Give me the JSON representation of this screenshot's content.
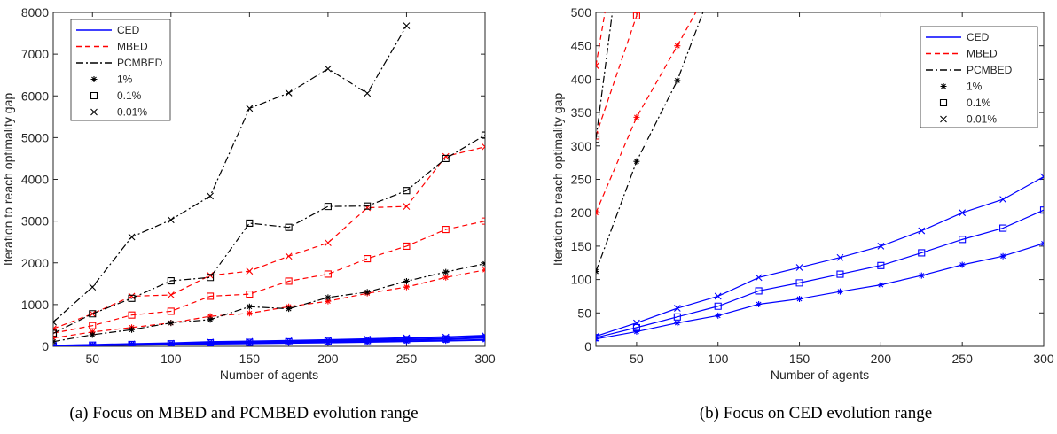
{
  "chart_data": [
    {
      "type": "line",
      "caption": "(a) Focus on MBED and PCMBED evolution range",
      "xlabel": "Number of agents",
      "ylabel": "Iteration to reach optimality gap",
      "x": [
        25,
        50,
        75,
        100,
        125,
        150,
        175,
        200,
        225,
        250,
        275,
        300
      ],
      "xlim": [
        25,
        300
      ],
      "xticks": [
        50,
        100,
        150,
        200,
        250,
        300
      ],
      "ylim": [
        0,
        8000
      ],
      "yticks": [
        0,
        1000,
        2000,
        3000,
        4000,
        5000,
        6000,
        7000,
        8000
      ],
      "markers": [
        {
          "name": "1%",
          "symbol": "star"
        },
        {
          "name": "0.1%",
          "symbol": "square"
        },
        {
          "name": "0.01%",
          "symbol": "cross"
        }
      ],
      "series": [
        {
          "name": "CED",
          "color": "#0000ff",
          "style": "solid",
          "values": [
            [
              11,
              22,
              35,
              46,
              63,
              71,
              82,
              92,
              106,
              122,
              135,
              154
            ],
            [
              13,
              28,
              44,
              60,
              83,
              95,
              108,
              121,
              140,
              160,
              177,
              204
            ],
            [
              15,
              35,
              57,
              75,
              103,
              118,
              133,
              150,
              173,
              200,
              220,
              254
            ]
          ]
        },
        {
          "name": "MBED",
          "color": "#ff0000",
          "style": "dashed",
          "values": [
            [
              200,
              343,
              450,
              560,
              720,
              790,
              950,
              1080,
              1270,
              1420,
              1650,
              1830
            ],
            [
              315,
              495,
              750,
              840,
              1200,
              1250,
              1560,
              1730,
              2100,
              2400,
              2800,
              3000
            ],
            [
              420,
              780,
              1200,
              1230,
              1700,
              1800,
              2160,
              2480,
              3320,
              3350,
              4550,
              4780
            ]
          ]
        },
        {
          "name": "PCMBED",
          "color": "#000000",
          "style": "dashdot",
          "values": [
            [
              112,
              277,
              398,
              560,
              640,
              950,
              900,
              1170,
              1300,
              1560,
              1780,
              1980
            ],
            [
              310,
              780,
              1150,
              1570,
              1650,
              2950,
              2850,
              3350,
              3360,
              3730,
              4500,
              5060
            ],
            [
              580,
              1420,
              2620,
              3030,
              3600,
              5700,
              6070,
              6650,
              6060,
              7680,
              null,
              null
            ]
          ]
        }
      ]
    },
    {
      "type": "line",
      "caption": "(b) Focus on CED evolution range",
      "xlabel": "Number of agents",
      "ylabel": "Iteration to reach optimality gap",
      "x": [
        25,
        50,
        75,
        100,
        125,
        150,
        175,
        200,
        225,
        250,
        275,
        300
      ],
      "xlim": [
        25,
        300
      ],
      "xticks": [
        50,
        100,
        150,
        200,
        250,
        300
      ],
      "ylim": [
        0,
        500
      ],
      "yticks": [
        0,
        50,
        100,
        150,
        200,
        250,
        300,
        350,
        400,
        450,
        500
      ],
      "markers": [
        {
          "name": "1%",
          "symbol": "star"
        },
        {
          "name": "0.1%",
          "symbol": "square"
        },
        {
          "name": "0.01%",
          "symbol": "cross"
        }
      ],
      "series": [
        {
          "name": "CED",
          "color": "#0000ff",
          "style": "solid",
          "values": [
            [
              11,
              22,
              35,
              46,
              63,
              71,
              82,
              92,
              106,
              122,
              135,
              154
            ],
            [
              13,
              28,
              44,
              60,
              83,
              95,
              108,
              121,
              140,
              160,
              177,
              204
            ],
            [
              15,
              35,
              57,
              75,
              103,
              118,
              133,
              150,
              173,
              200,
              220,
              254
            ]
          ]
        },
        {
          "name": "MBED",
          "color": "#ff0000",
          "style": "dashed",
          "values": [
            [
              200,
              343,
              450,
              560,
              720,
              790,
              950,
              1080,
              1270,
              1420,
              1650,
              1830
            ],
            [
              315,
              495,
              750,
              840,
              1200,
              1250,
              1560,
              1730,
              2100,
              2400,
              2800,
              3000
            ],
            [
              420,
              780,
              1200,
              1230,
              1700,
              1800,
              2160,
              2480,
              3320,
              3350,
              4550,
              4780
            ]
          ]
        },
        {
          "name": "PCMBED",
          "color": "#000000",
          "style": "dashdot",
          "values": [
            [
              112,
              277,
              398,
              560,
              640,
              950,
              900,
              1170,
              1300,
              1560,
              1780,
              1980
            ],
            [
              310,
              780,
              1150,
              1570,
              1650,
              2950,
              2850,
              3350,
              3360,
              3730,
              4500,
              5060
            ],
            [
              580,
              1420,
              2620,
              3030,
              3600,
              5700,
              6070,
              6650,
              6060,
              7680,
              null,
              null
            ]
          ]
        }
      ]
    }
  ]
}
